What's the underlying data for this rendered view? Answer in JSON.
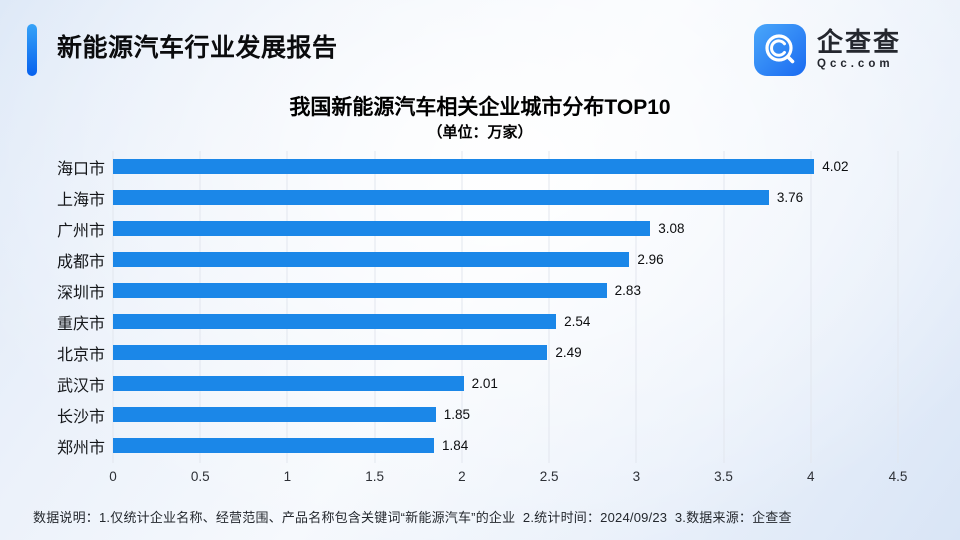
{
  "header": {
    "title": "新能源汽车行业发展报告",
    "accent_color_top": "#36a3f8",
    "accent_color_bottom": "#0761ee"
  },
  "logo": {
    "name": "企查查",
    "domain": "Qcc.com",
    "icon": "qcc-magnifier-icon",
    "icon_color_top": "#4aa7fa",
    "icon_color_bottom": "#1a6af1"
  },
  "chart_data": {
    "type": "bar",
    "orientation": "horizontal",
    "title": "我国新能源汽车相关企业城市分布TOP10",
    "subtitle": "（单位：万家）",
    "unit": "万家",
    "categories": [
      "海口市",
      "上海市",
      "广州市",
      "成都市",
      "深圳市",
      "重庆市",
      "北京市",
      "武汉市",
      "长沙市",
      "郑州市"
    ],
    "values": [
      4.02,
      3.76,
      3.08,
      2.96,
      2.83,
      2.54,
      2.49,
      2.01,
      1.85,
      1.84
    ],
    "xlabel": "",
    "ylabel": "",
    "xlim": [
      0,
      4.5
    ],
    "xticks": [
      "0",
      "0.5",
      "1",
      "1.5",
      "2",
      "2.5",
      "3",
      "3.5",
      "4",
      "4.5"
    ],
    "grid": true,
    "legend": false,
    "bar_color": "#1b87e8",
    "gridline_color": "#e2e6ee"
  },
  "footer": {
    "note": "数据说明：1.仅统计企业名称、经营范围、产品名称包含关键词“新能源汽车”的企业  2.统计时间：2024/09/23  3.数据来源：企查查"
  }
}
